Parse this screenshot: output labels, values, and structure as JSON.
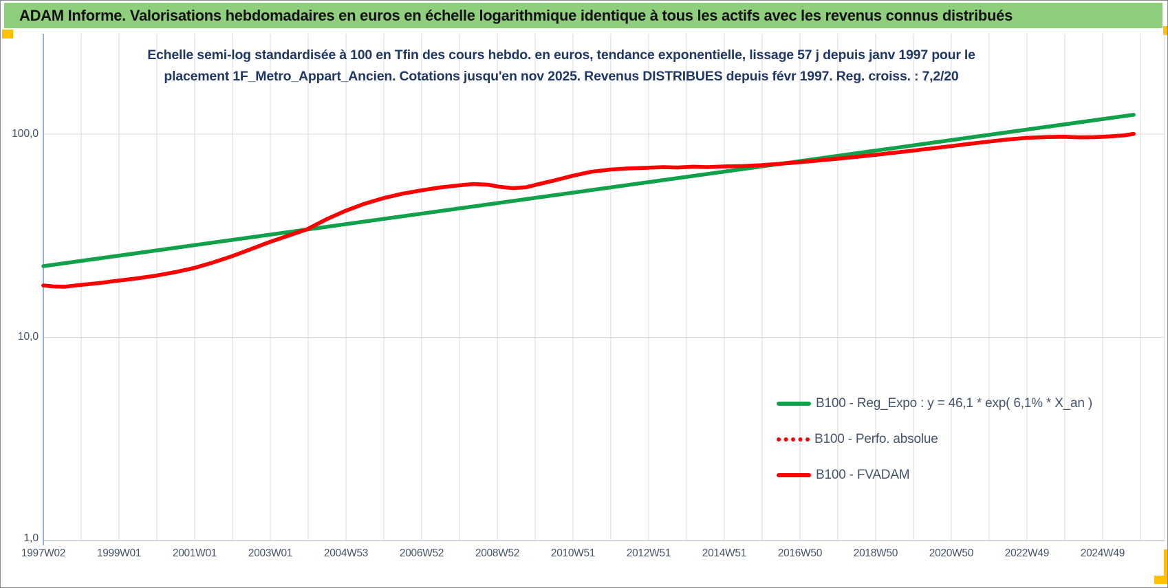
{
  "header": {
    "title": "ADAM Informe. Valorisations hebdomadaires en euros en échelle logarithmique identique à tous les actifs avec les revenus connus distribués",
    "bar_color": "#8FCE7D",
    "text_color": "#111111"
  },
  "selection_handles": {
    "color": "#FFC000",
    "positions": [
      "top-left",
      "top-right",
      "bottom-right"
    ]
  },
  "chart_data": {
    "type": "line",
    "title_line1": "Echelle semi-log standardisée à 100 en Tfin des cours hebdo. en euros, tendance exponentielle, lissage 57 j depuis janv 1997 pour le",
    "title_line2": "placement 1F_Metro_Appart_Ancien. Cotations jusqu'en nov 2025. Revenus DISTRIBUES depuis févr 1997. Reg. croiss. : 7,2/20",
    "title_color": "#1F3864",
    "axis_text_color": "#44546A",
    "gridline_color": "#D9D9D9",
    "grid": "on",
    "legend_position": "center-right-inside",
    "y_axis": {
      "scale": "log",
      "ticks": [
        "100,0",
        "10,0",
        "1,0"
      ],
      "tick_values": [
        100,
        10,
        1
      ],
      "min": 1,
      "max": 200
    },
    "x_axis": {
      "labels": [
        "1997W02",
        "1999W01",
        "2001W01",
        "2003W01",
        "2004W53",
        "2006W52",
        "2008W52",
        "2010W51",
        "2012W51",
        "2014W51",
        "2016W50",
        "2018W50",
        "2020W50",
        "2022W49",
        "2024W49"
      ],
      "label_interval_years": 2,
      "gridline_interval_years": 1,
      "start_year": 1997.03,
      "end_year": 2025.85
    },
    "series": [
      {
        "name": "B100 - Reg_Expo : y = 46,1 * exp( 6,1% *  X_an )",
        "color": "#12A14B",
        "style": "solid",
        "points": [
          [
            1997.03,
            22.4
          ],
          [
            2025.85,
            124.5
          ]
        ]
      },
      {
        "name": "B100 - Perfo. absolue",
        "color": "#FF0000",
        "style": "dotted",
        "same_points_as": "B100 - FVADAM",
        "note": "dotted curve coincides with B100 - FVADAM and is hidden beneath it"
      },
      {
        "name": "B100 - FVADAM",
        "color": "#FF0000",
        "style": "solid",
        "points": [
          [
            1997.03,
            18.0
          ],
          [
            1997.3,
            17.8
          ],
          [
            1997.6,
            17.75
          ],
          [
            1998.0,
            18.1
          ],
          [
            1998.5,
            18.5
          ],
          [
            1999.0,
            19.0
          ],
          [
            1999.5,
            19.5
          ],
          [
            2000.0,
            20.1
          ],
          [
            2000.5,
            20.9
          ],
          [
            2001.0,
            21.9
          ],
          [
            2001.5,
            23.3
          ],
          [
            2002.0,
            25.0
          ],
          [
            2002.5,
            27.1
          ],
          [
            2003.0,
            29.4
          ],
          [
            2003.5,
            31.6
          ],
          [
            2004.0,
            34.0
          ],
          [
            2004.5,
            38.0
          ],
          [
            2005.0,
            41.8
          ],
          [
            2005.5,
            45.3
          ],
          [
            2006.0,
            48.3
          ],
          [
            2006.5,
            50.8
          ],
          [
            2007.0,
            52.8
          ],
          [
            2007.5,
            54.6
          ],
          [
            2008.0,
            55.9
          ],
          [
            2008.4,
            56.8
          ],
          [
            2008.8,
            56.3
          ],
          [
            2009.1,
            55.0
          ],
          [
            2009.45,
            54.2
          ],
          [
            2009.8,
            54.8
          ],
          [
            2010.1,
            56.6
          ],
          [
            2010.5,
            58.9
          ],
          [
            2011.0,
            62.2
          ],
          [
            2011.5,
            65.2
          ],
          [
            2012.0,
            66.9
          ],
          [
            2012.5,
            67.8
          ],
          [
            2013.0,
            68.3
          ],
          [
            2013.4,
            68.8
          ],
          [
            2013.8,
            68.5
          ],
          [
            2014.2,
            69.1
          ],
          [
            2014.6,
            68.8
          ],
          [
            2015.0,
            69.3
          ],
          [
            2015.5,
            69.6
          ],
          [
            2016.0,
            70.3
          ],
          [
            2016.5,
            71.4
          ],
          [
            2017.0,
            72.7
          ],
          [
            2017.5,
            74.1
          ],
          [
            2018.0,
            75.6
          ],
          [
            2018.5,
            77.2
          ],
          [
            2019.0,
            79.0
          ],
          [
            2019.5,
            80.9
          ],
          [
            2020.0,
            82.9
          ],
          [
            2020.5,
            85.0
          ],
          [
            2021.0,
            87.2
          ],
          [
            2021.5,
            89.5
          ],
          [
            2022.0,
            91.8
          ],
          [
            2022.5,
            94.0
          ],
          [
            2023.0,
            95.7
          ],
          [
            2023.5,
            96.7
          ],
          [
            2024.0,
            97.1
          ],
          [
            2024.4,
            96.4
          ],
          [
            2024.8,
            96.6
          ],
          [
            2025.2,
            97.4
          ],
          [
            2025.6,
            98.6
          ],
          [
            2025.85,
            100.2
          ]
        ]
      }
    ]
  }
}
